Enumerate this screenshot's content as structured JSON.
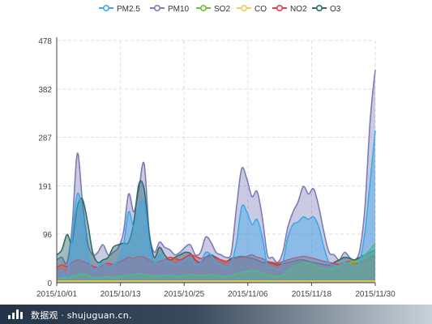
{
  "chart_data": {
    "type": "area",
    "x_ticks": [
      "2015/10/01",
      "2015/10/13",
      "2015/10/25",
      "2015/11/06",
      "2015/11/18",
      "2015/11/30"
    ],
    "x_start": "2015/10/01",
    "x_end": "2015/11/30",
    "y_ticks": [
      0,
      96,
      191,
      287,
      382,
      478
    ],
    "ylim": [
      0,
      478
    ],
    "grid": true,
    "legend_position": "top-center",
    "series": [
      {
        "name": "PM10",
        "color": "#7b7cb8",
        "values": [
          45,
          50,
          40,
          110,
          255,
          160,
          80,
          55,
          60,
          75,
          55,
          60,
          70,
          100,
          175,
          140,
          185,
          235,
          100,
          60,
          80,
          70,
          65,
          55,
          60,
          70,
          75,
          55,
          60,
          90,
          80,
          60,
          55,
          50,
          60,
          150,
          225,
          205,
          170,
          180,
          130,
          55,
          50,
          40,
          60,
          110,
          140,
          160,
          190,
          175,
          185,
          150,
          100,
          60,
          55,
          45,
          60,
          50,
          45,
          65,
          150,
          320,
          420
        ]
      },
      {
        "name": "PM2.5",
        "color": "#3fa9e8",
        "values": [
          20,
          25,
          15,
          90,
          175,
          140,
          60,
          25,
          30,
          40,
          30,
          35,
          45,
          75,
          140,
          110,
          150,
          160,
          80,
          40,
          55,
          45,
          40,
          35,
          40,
          45,
          50,
          35,
          40,
          60,
          55,
          40,
          35,
          30,
          40,
          80,
          150,
          140,
          115,
          125,
          90,
          35,
          30,
          25,
          40,
          90,
          115,
          120,
          130,
          125,
          130,
          110,
          70,
          40,
          35,
          30,
          40,
          35,
          30,
          45,
          100,
          200,
          300
        ]
      },
      {
        "name": "SO2",
        "color": "#67c23a",
        "values": [
          8,
          10,
          9,
          12,
          15,
          18,
          14,
          10,
          9,
          11,
          12,
          10,
          12,
          14,
          16,
          15,
          18,
          17,
          14,
          12,
          13,
          14,
          15,
          13,
          12,
          14,
          16,
          15,
          14,
          15,
          16,
          14,
          13,
          12,
          14,
          18,
          20,
          22,
          25,
          23,
          20,
          16,
          14,
          12,
          15,
          25,
          30,
          35,
          40,
          38,
          35,
          30,
          28,
          26,
          30,
          34,
          38,
          40,
          42,
          45,
          55,
          65,
          78
        ]
      },
      {
        "name": "CO",
        "color": "#f5c858",
        "values": [
          3,
          3,
          3,
          3,
          3,
          3,
          3,
          3,
          3,
          3,
          3,
          3,
          3,
          3,
          3,
          3,
          3,
          3,
          3,
          3,
          3,
          3,
          3,
          3,
          3,
          3,
          3,
          3,
          3,
          3,
          3,
          3,
          3,
          3,
          3,
          3,
          3,
          3,
          3,
          3,
          3,
          3,
          3,
          3,
          3,
          3,
          3,
          3,
          3,
          3,
          3,
          3,
          3,
          3,
          3,
          3,
          3,
          3,
          3,
          3,
          3,
          3,
          3
        ]
      },
      {
        "name": "NO2",
        "color": "#e0404a",
        "values": [
          30,
          35,
          32,
          40,
          45,
          42,
          38,
          33,
          30,
          35,
          38,
          36,
          40,
          45,
          50,
          48,
          52,
          50,
          45,
          40,
          42,
          45,
          50,
          48,
          45,
          50,
          55,
          52,
          48,
          50,
          52,
          48,
          45,
          42,
          45,
          48,
          50,
          52,
          55,
          50,
          48,
          42,
          40,
          38,
          42,
          45,
          48,
          50,
          52,
          50,
          48,
          45,
          42,
          40,
          38,
          36,
          40,
          42,
          38,
          40,
          45,
          50,
          55
        ]
      },
      {
        "name": "O3",
        "color": "#2e6b6b",
        "values": [
          55,
          65,
          95,
          80,
          150,
          165,
          120,
          60,
          40,
          45,
          50,
          70,
          75,
          78,
          80,
          120,
          195,
          185,
          95,
          50,
          70,
          55,
          45,
          50,
          55,
          60,
          58,
          45,
          40,
          50,
          55,
          50,
          45,
          42,
          48,
          50,
          52,
          50,
          48,
          45,
          40,
          40,
          38,
          35,
          38,
          40,
          42,
          45,
          45,
          42,
          40,
          38,
          36,
          35,
          40,
          45,
          50,
          48,
          45,
          50,
          55,
          60,
          65
        ]
      }
    ]
  },
  "footer": {
    "brand": "数据观 · shujuguan.cn."
  }
}
